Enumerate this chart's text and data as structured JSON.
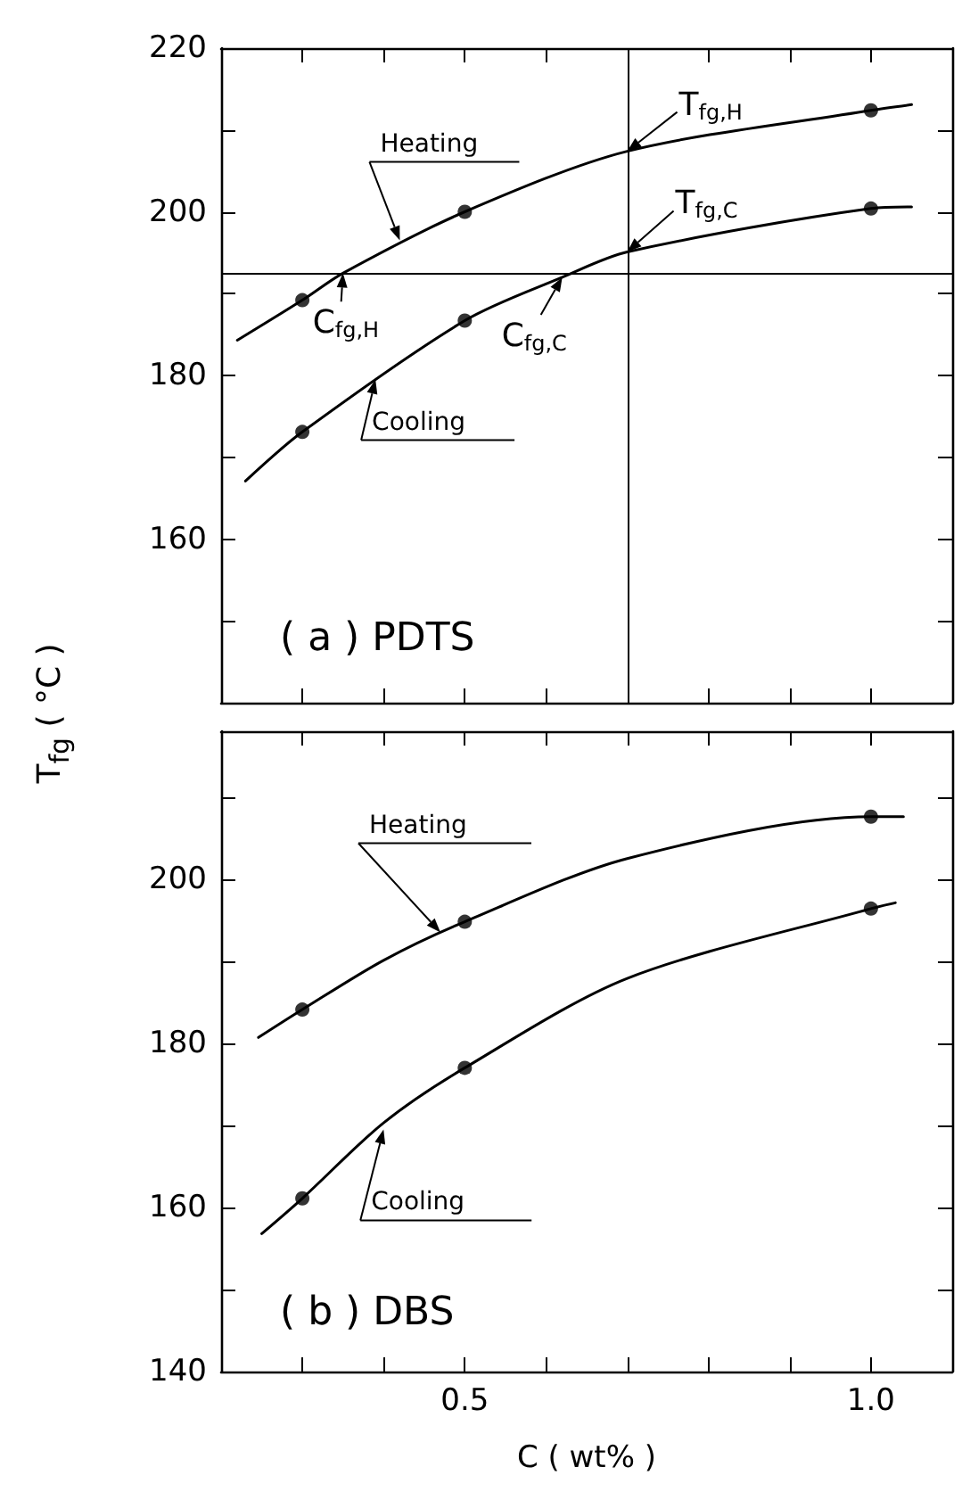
{
  "chart_data": [
    {
      "type": "line",
      "title": "( a ) PDTS",
      "ylabel": "T$_{fg}$ ( °C )",
      "xlim": [
        0.2,
        1.1
      ],
      "ylim": [
        140,
        220
      ],
      "xticks": [
        {
          "value": 0.3,
          "label": null
        },
        {
          "value": 0.4,
          "label": null
        },
        {
          "value": 0.5,
          "label": null
        },
        {
          "value": 0.6,
          "label": null
        },
        {
          "value": 0.7,
          "label": null
        },
        {
          "value": 0.8,
          "label": null
        },
        {
          "value": 0.9,
          "label": null
        },
        {
          "value": 1.0,
          "label": null
        }
      ],
      "yticks": [
        {
          "value": 150,
          "label": null
        },
        160,
        {
          "value": 170,
          "label": null
        },
        180,
        {
          "value": 190,
          "label": null
        },
        200,
        {
          "value": 210,
          "label": null
        },
        220
      ],
      "tick_labels": "y",
      "grid": false,
      "series": [
        {
          "color": "#000000",
          "marker": "none",
          "line_style": "solid",
          "x": [
            0.22,
            0.3,
            0.35,
            0.5,
            0.7,
            1.0,
            1.05
          ],
          "values": [
            184.3,
            189.2,
            192.5,
            200,
            207.4,
            212.4,
            213.1
          ]
        },
        {
          "color": "#000000",
          "marker": "none",
          "line_style": "solid",
          "x": [
            0.23,
            0.3,
            0.5,
            0.62,
            0.7,
            1.0,
            1.05
          ],
          "values": [
            167.1,
            173.1,
            186.7,
            192,
            195.1,
            200.4,
            200.6
          ]
        },
        {
          "type": "scatter",
          "color": "#000000",
          "marker": "circle",
          "x": [
            0.3,
            0.5,
            1.0
          ],
          "values": [
            189.2,
            200,
            212.4
          ]
        },
        {
          "type": "scatter",
          "color": "#000000",
          "marker": "circle",
          "x": [
            0.3,
            0.5,
            1.0
          ],
          "values": [
            173.1,
            186.7,
            200.4
          ]
        }
      ],
      "ref_lines": [
        {
          "axis": "x",
          "value": 0.7
        },
        {
          "axis": "y",
          "value": 192.5
        }
      ],
      "annotations": [
        {
          "text": "Heating",
          "x": 0.42,
          "y": 196.5
        },
        {
          "text": "Cooling",
          "x": 0.39,
          "y": 179.5
        },
        {
          "text": "T$_{fg,H}$",
          "x": 0.7,
          "y": 207.4
        },
        {
          "text": "T$_{fg,C}$",
          "x": 0.7,
          "y": 195.1
        },
        {
          "text": "C$_{fg,H}$",
          "x": 0.35,
          "y": 192.5
        },
        {
          "text": "C$_{fg,C}$",
          "x": 0.62,
          "y": 192
        }
      ]
    },
    {
      "type": "line",
      "title": "( b ) DBS",
      "xlabel": "C ( wt% )",
      "xlim": [
        0.2,
        1.1
      ],
      "ylim": [
        140,
        218
      ],
      "xticks": [
        {
          "value": 0.3,
          "label": null
        },
        {
          "value": 0.4,
          "label": null
        },
        {
          "value": 0.5,
          "label": "0.5"
        },
        {
          "value": 0.6,
          "label": null
        },
        {
          "value": 0.7,
          "label": null
        },
        {
          "value": 0.8,
          "label": null
        },
        {
          "value": 0.9,
          "label": null
        },
        {
          "value": 1.0,
          "label": "1.0"
        }
      ],
      "yticks": [
        140,
        {
          "value": 150,
          "label": null
        },
        160,
        {
          "value": 170,
          "label": null
        },
        180,
        {
          "value": 190,
          "label": null
        },
        200,
        {
          "value": 210,
          "label": null
        }
      ],
      "grid": false,
      "series": [
        {
          "color": "#000000",
          "marker": "none",
          "line_style": "solid",
          "x": [
            0.246,
            0.3,
            0.4,
            0.5,
            0.7,
            1.0,
            1.04
          ],
          "values": [
            180.7,
            184.1,
            190.1,
            194.8,
            202.5,
            207.6,
            207.6
          ]
        },
        {
          "color": "#000000",
          "marker": "none",
          "line_style": "solid",
          "x": [
            0.25,
            0.3,
            0.4,
            0.5,
            0.7,
            1.0,
            1.03
          ],
          "values": [
            156.8,
            161.1,
            170.3,
            177,
            187.9,
            196.4,
            197.1
          ]
        },
        {
          "type": "scatter",
          "color": "#000000",
          "marker": "circle",
          "x": [
            0.3,
            0.5,
            1.0
          ],
          "values": [
            184.1,
            194.8,
            207.6
          ]
        },
        {
          "type": "scatter",
          "color": "#000000",
          "marker": "circle",
          "x": [
            0.3,
            0.5,
            1.0
          ],
          "values": [
            161.1,
            177,
            196.4
          ]
        }
      ],
      "annotations": [
        {
          "text": "Heating",
          "x": 0.47,
          "y": 193.5
        },
        {
          "text": "Cooling",
          "x": 0.4,
          "y": 169.5
        }
      ]
    }
  ]
}
